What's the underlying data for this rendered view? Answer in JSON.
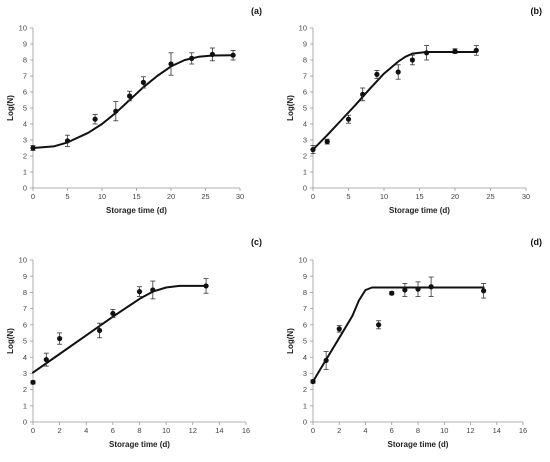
{
  "chart_data": [
    {
      "panel_label": "(a)",
      "type": "scatter",
      "xlabel": "Storage time (d)",
      "ylabel": "Log(N)",
      "xlim": [
        0,
        30
      ],
      "ylim": [
        0,
        10
      ],
      "xticks": [
        0,
        5,
        10,
        15,
        20,
        25,
        30
      ],
      "yticks": [
        0,
        1,
        2,
        3,
        4,
        5,
        6,
        7,
        8,
        9,
        10
      ],
      "points": [
        {
          "x": 0,
          "y": 2.5,
          "err": 0.15
        },
        {
          "x": 5,
          "y": 2.95,
          "err": 0.35
        },
        {
          "x": 9,
          "y": 4.3,
          "err": 0.3
        },
        {
          "x": 12,
          "y": 4.8,
          "err": 0.6
        },
        {
          "x": 14,
          "y": 5.75,
          "err": 0.3
        },
        {
          "x": 16,
          "y": 6.6,
          "err": 0.35
        },
        {
          "x": 20,
          "y": 7.75,
          "err": 0.7
        },
        {
          "x": 23,
          "y": 8.1,
          "err": 0.35
        },
        {
          "x": 26,
          "y": 8.35,
          "err": 0.4
        },
        {
          "x": 29,
          "y": 8.3,
          "err": 0.3
        }
      ],
      "fit": [
        [
          0,
          2.5
        ],
        [
          3,
          2.6
        ],
        [
          5,
          2.85
        ],
        [
          8,
          3.45
        ],
        [
          10,
          4.0
        ],
        [
          12,
          4.7
        ],
        [
          14,
          5.5
        ],
        [
          16,
          6.3
        ],
        [
          18,
          7.0
        ],
        [
          20,
          7.6
        ],
        [
          22,
          8.0
        ],
        [
          24,
          8.2
        ],
        [
          26,
          8.28
        ],
        [
          29,
          8.3
        ]
      ]
    },
    {
      "panel_label": "(b)",
      "type": "scatter",
      "xlabel": "Storage time (d)",
      "ylabel": "Log(N)",
      "xlim": [
        0,
        30
      ],
      "ylim": [
        0,
        10
      ],
      "xticks": [
        0,
        5,
        10,
        15,
        20,
        25,
        30
      ],
      "yticks": [
        0,
        1,
        2,
        3,
        4,
        5,
        6,
        7,
        8,
        9,
        10
      ],
      "points": [
        {
          "x": 0,
          "y": 2.4,
          "err": 0.25
        },
        {
          "x": 2,
          "y": 2.9,
          "err": 0.15
        },
        {
          "x": 5,
          "y": 4.3,
          "err": 0.25
        },
        {
          "x": 7,
          "y": 5.85,
          "err": 0.4
        },
        {
          "x": 9,
          "y": 7.1,
          "err": 0.25
        },
        {
          "x": 12,
          "y": 7.25,
          "err": 0.45
        },
        {
          "x": 14,
          "y": 8.0,
          "err": 0.3
        },
        {
          "x": 16,
          "y": 8.45,
          "err": 0.45
        },
        {
          "x": 20,
          "y": 8.55,
          "err": 0.15
        },
        {
          "x": 23,
          "y": 8.6,
          "err": 0.3
        }
      ],
      "fit": [
        [
          0,
          2.4
        ],
        [
          2,
          3.3
        ],
        [
          4,
          4.25
        ],
        [
          6,
          5.2
        ],
        [
          8,
          6.2
        ],
        [
          10,
          7.15
        ],
        [
          12,
          7.9
        ],
        [
          13,
          8.2
        ],
        [
          14,
          8.4
        ],
        [
          16,
          8.5
        ],
        [
          20,
          8.5
        ],
        [
          23,
          8.5
        ]
      ]
    },
    {
      "panel_label": "(c)",
      "type": "scatter",
      "xlabel": "Storage time (d)",
      "ylabel": "Log(N)",
      "xlim": [
        0,
        16
      ],
      "ylim": [
        0,
        10
      ],
      "xticks": [
        0,
        2,
        4,
        6,
        8,
        10,
        12,
        14,
        16
      ],
      "yticks": [
        0,
        1,
        2,
        3,
        4,
        5,
        6,
        7,
        8,
        9,
        10
      ],
      "points": [
        {
          "x": 0,
          "y": 2.45,
          "err": 0.1
        },
        {
          "x": 1,
          "y": 3.85,
          "err": 0.4
        },
        {
          "x": 2,
          "y": 5.15,
          "err": 0.35
        },
        {
          "x": 5,
          "y": 5.65,
          "err": 0.45
        },
        {
          "x": 6,
          "y": 6.7,
          "err": 0.25
        },
        {
          "x": 8,
          "y": 8.05,
          "err": 0.3
        },
        {
          "x": 9,
          "y": 8.15,
          "err": 0.55
        },
        {
          "x": 13,
          "y": 8.4,
          "err": 0.45
        }
      ],
      "fit": [
        [
          0,
          3.05
        ],
        [
          2,
          4.2
        ],
        [
          4,
          5.35
        ],
        [
          6,
          6.5
        ],
        [
          8,
          7.6
        ],
        [
          9,
          8.05
        ],
        [
          10,
          8.3
        ],
        [
          11,
          8.4
        ],
        [
          13,
          8.4
        ]
      ]
    },
    {
      "panel_label": "(d)",
      "type": "scatter",
      "xlabel": "Storage time (d)",
      "ylabel": "Log(N)",
      "xlim": [
        0,
        16
      ],
      "ylim": [
        0,
        10
      ],
      "xticks": [
        0,
        2,
        4,
        6,
        8,
        10,
        12,
        14,
        16
      ],
      "yticks": [
        0,
        1,
        2,
        3,
        4,
        5,
        6,
        7,
        8,
        9,
        10
      ],
      "points": [
        {
          "x": 0,
          "y": 2.5,
          "err": 0.1
        },
        {
          "x": 1,
          "y": 3.8,
          "err": 0.55
        },
        {
          "x": 2,
          "y": 5.75,
          "err": 0.2
        },
        {
          "x": 5,
          "y": 6.0,
          "err": 0.25
        },
        {
          "x": 6,
          "y": 7.95,
          "err": 0.1
        },
        {
          "x": 7,
          "y": 8.15,
          "err": 0.4
        },
        {
          "x": 8,
          "y": 8.2,
          "err": 0.45
        },
        {
          "x": 9,
          "y": 8.35,
          "err": 0.6
        },
        {
          "x": 13,
          "y": 8.1,
          "err": 0.45
        }
      ],
      "fit": [
        [
          0,
          2.5
        ],
        [
          1,
          3.85
        ],
        [
          2,
          5.2
        ],
        [
          3,
          6.55
        ],
        [
          3.5,
          7.5
        ],
        [
          4,
          8.15
        ],
        [
          4.5,
          8.3
        ],
        [
          6,
          8.3
        ],
        [
          13,
          8.3
        ]
      ]
    }
  ]
}
